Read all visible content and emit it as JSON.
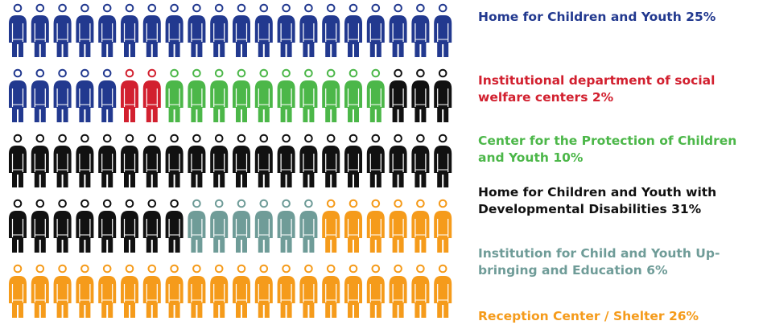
{
  "chart_data": {
    "type": "pictogram",
    "series": [
      {
        "name": "Home for Children and Youth",
        "value": 25,
        "value_label": "25%",
        "color": "#22398f"
      },
      {
        "name": "Institutional department of social welfare centers",
        "value": 2,
        "value_label": "2%",
        "color": "#d2202f"
      },
      {
        "name": "Center for the Protection of Children and Youth",
        "value": 10,
        "value_label": "10%",
        "color": "#4cb749"
      },
      {
        "name": "Home for Children and Youth with Developmental Disabilities",
        "value": 31,
        "value_label": "31%",
        "color": "#111111"
      },
      {
        "name": "Institution for Child and Youth Up-bringing and Education",
        "value": 6,
        "value_label": "6%",
        "color": "#6f9c98"
      },
      {
        "name": "Reception Center / Shelter",
        "value": 26,
        "value_label": "26%",
        "color": "#f59b1b"
      }
    ]
  }
}
